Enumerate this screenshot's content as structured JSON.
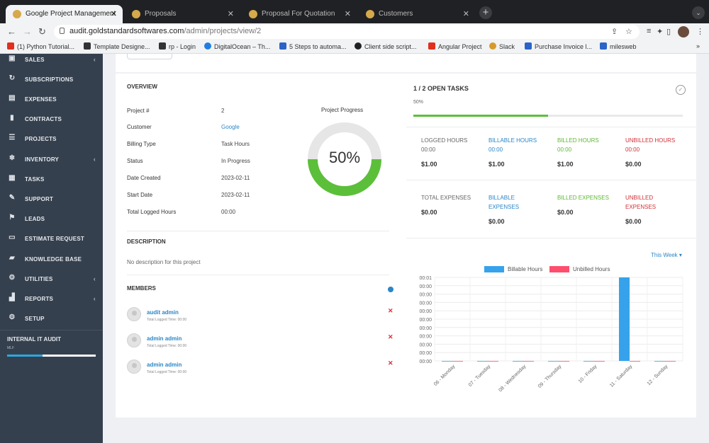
{
  "browser": {
    "tabs": [
      {
        "title": "Google Project Management",
        "close": "✕",
        "active": true
      },
      {
        "title": "Proposals",
        "close": "✕",
        "active": false
      },
      {
        "title": "Proposal For Quotation",
        "close": "✕",
        "active": false
      },
      {
        "title": "Customers",
        "close": "✕",
        "active": false
      }
    ],
    "url_host": "audit.goldstandardsoftwares.com",
    "url_path": "/admin/projects/view/2",
    "bookmarks": [
      {
        "label": "(1) Python Tutorial...",
        "color": "#e0301e"
      },
      {
        "label": "Template Designe...",
        "color": "#333333"
      },
      {
        "label": "rp - Login",
        "color": "#333333"
      },
      {
        "label": "DigitalOcean – Th...",
        "color": "#1f7fe0"
      },
      {
        "label": "5 Steps to automa...",
        "color": "#2b63c8"
      },
      {
        "label": "Client side script...",
        "color": "#222222"
      },
      {
        "label": "Angular Project",
        "color": "#e0301e"
      },
      {
        "label": "Slack",
        "color": "#d79a2a"
      },
      {
        "label": "Purchase Invoice l...",
        "color": "#2b63c8"
      },
      {
        "label": "milesweb",
        "color": "#2b63c8"
      }
    ],
    "bookmarks_more": "»"
  },
  "sidebar": {
    "items": [
      {
        "label": "SALES",
        "icon": "▣",
        "chevron": "‹"
      },
      {
        "label": "SUBSCRIPTIONS",
        "icon": "↻",
        "chevron": ""
      },
      {
        "label": "EXPENSES",
        "icon": "▤",
        "chevron": ""
      },
      {
        "label": "CONTRACTS",
        "icon": "▮",
        "chevron": ""
      },
      {
        "label": "PROJECTS",
        "icon": "☰",
        "chevron": ""
      },
      {
        "label": "INVENTORY",
        "icon": "❄",
        "chevron": "‹"
      },
      {
        "label": "TASKS",
        "icon": "▦",
        "chevron": ""
      },
      {
        "label": "SUPPORT",
        "icon": "✎",
        "chevron": ""
      },
      {
        "label": "LEADS",
        "icon": "⚑",
        "chevron": ""
      },
      {
        "label": "ESTIMATE REQUEST",
        "icon": "▭",
        "chevron": ""
      },
      {
        "label": "KNOWLEDGE BASE",
        "icon": "▰",
        "chevron": ""
      },
      {
        "label": "UTILITIES",
        "icon": "⚙",
        "chevron": "‹"
      },
      {
        "label": "REPORTS",
        "icon": "▟",
        "chevron": "‹"
      },
      {
        "label": "SETUP",
        "icon": "⚙",
        "chevron": ""
      }
    ],
    "audit_title": "INTERNAL IT AUDIT",
    "audit_sub": "MLF",
    "audit_progress": 0.4
  },
  "overview": {
    "title": "OVERVIEW",
    "rows": [
      {
        "label": "Project #",
        "value": "2",
        "link": false
      },
      {
        "label": "Customer",
        "value": "Google",
        "link": true
      },
      {
        "label": "Billing Type",
        "value": "Task Hours",
        "link": false
      },
      {
        "label": "Status",
        "value": "In Progress",
        "link": false
      },
      {
        "label": "Date Created",
        "value": "2023-02-11",
        "link": false
      },
      {
        "label": "Start Date",
        "value": "2023-02-11",
        "link": false
      },
      {
        "label": "Total Logged Hours",
        "value": "00:00",
        "link": false
      }
    ],
    "progress_label": "Project Progress",
    "progress_text": "50%",
    "progress_value": 0.5
  },
  "description": {
    "title": "DESCRIPTION",
    "text": "No description for this project"
  },
  "members": {
    "title": "MEMBERS",
    "list": [
      {
        "name": "audit admin",
        "time": "Total Logged Time: 00:00"
      },
      {
        "name": "admin admin",
        "time": "Total Logged Time: 00:00"
      },
      {
        "name": "admin admin",
        "time": "Total Logged Time: 00:00"
      }
    ],
    "remove_glyph": "✕"
  },
  "tasks": {
    "title": "1 / 2 OPEN TASKS",
    "percent_text": "50%",
    "progress_value": 0.5,
    "check_glyph": "✓"
  },
  "hours": [
    {
      "head": "LOGGED HOURS",
      "sub": "00:00",
      "value": "$1.00",
      "color": "grey"
    },
    {
      "head": "BILLABLE HOURS",
      "sub": "00:00",
      "value": "$1.00",
      "color": "blue"
    },
    {
      "head": "BILLED HOURS",
      "sub": "00:00",
      "value": "$1.00",
      "color": "green"
    },
    {
      "head": "UNBILLED HOURS",
      "sub": "00:00",
      "value": "$0.00",
      "color": "red"
    }
  ],
  "expenses": [
    {
      "head": "TOTAL EXPENSES",
      "value": "$0.00",
      "color": "grey"
    },
    {
      "head": "BILLABLE EXPENSES",
      "value": "$0.00",
      "color": "blue"
    },
    {
      "head": "BILLED EXPENSES",
      "value": "$0.00",
      "color": "green"
    },
    {
      "head": "UNBILLED EXPENSES",
      "value": "$0.00",
      "color": "red"
    }
  ],
  "chart_period": "This Week ▾",
  "chart_data": {
    "type": "bar",
    "categories": [
      "06 - Monday",
      "07 - Tuesday",
      "08 - Wednesday",
      "09 - Thursday",
      "10 - Friday",
      "11 - Saturday",
      "12 - Sunday"
    ],
    "series": [
      {
        "name": "Billable Hours",
        "color": "#36a2eb",
        "values": [
          0,
          0,
          0,
          0,
          0,
          1,
          0
        ]
      },
      {
        "name": "Unbilled Hours",
        "color": "#ff4d6d",
        "values": [
          0,
          0,
          0,
          0,
          0,
          0,
          0
        ]
      }
    ],
    "y_ticks": [
      "00:00",
      "00:00",
      "00:00",
      "00:00",
      "00:00",
      "00:00",
      "00:00",
      "00:00",
      "00:00",
      "00:00",
      "00:01"
    ],
    "ylim": [
      0,
      1
    ],
    "grid": true,
    "legend": "top"
  },
  "colors": {
    "sidebar": "#35404e",
    "accent_blue": "#2a86c7",
    "progress_green": "#5cbf3a",
    "danger": "#d0323a"
  }
}
